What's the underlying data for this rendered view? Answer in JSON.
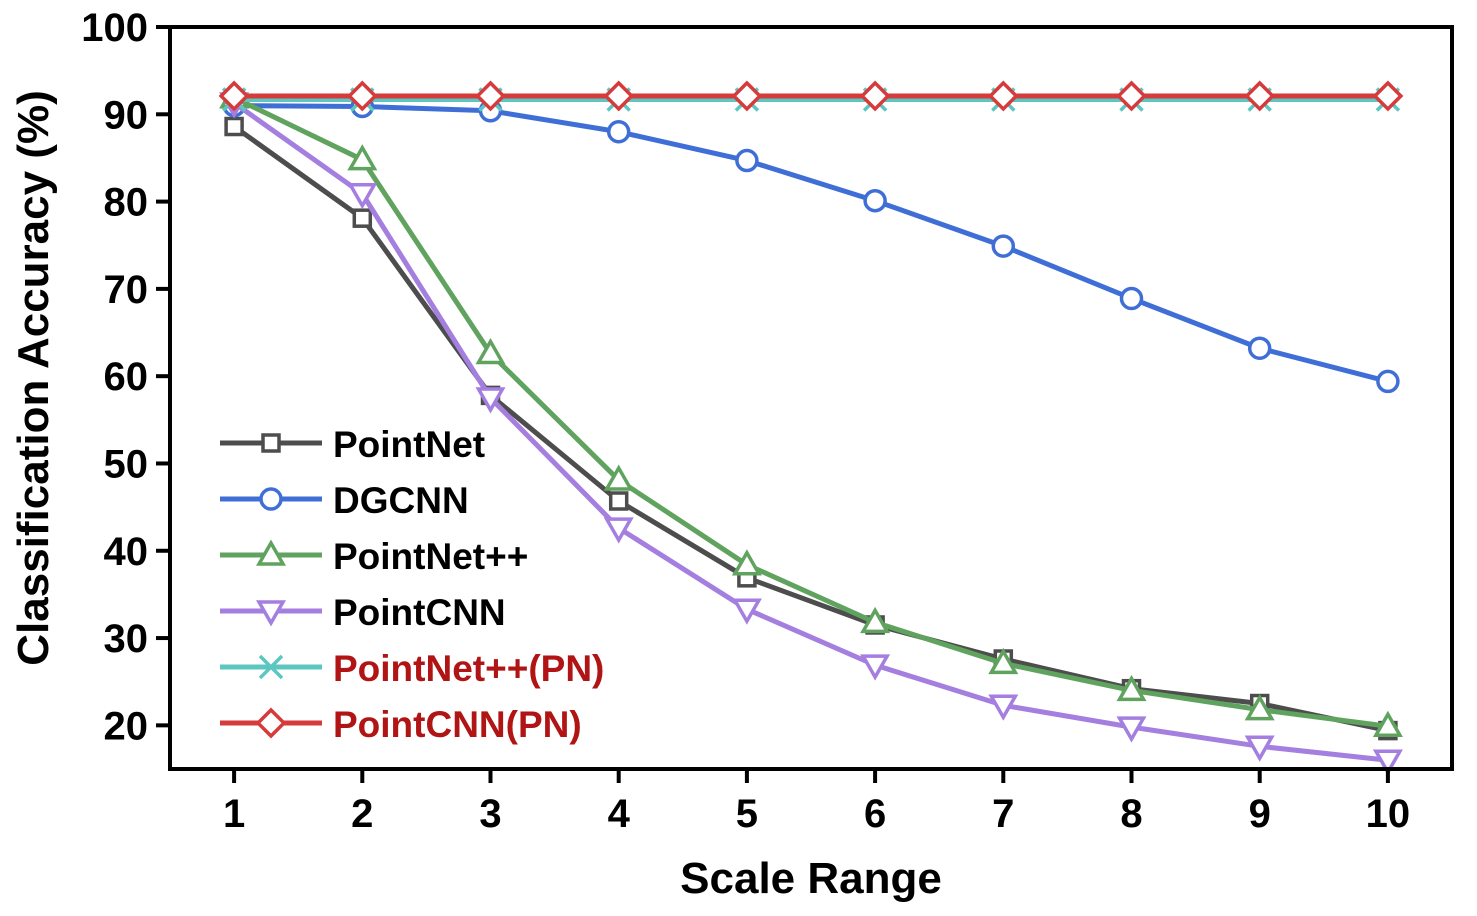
{
  "chart_data": {
    "type": "line",
    "xlabel": "Scale Range",
    "ylabel": "Classification Accuracy (%)",
    "x": [
      1,
      2,
      3,
      4,
      5,
      6,
      7,
      8,
      9,
      10
    ],
    "xlim": [
      0.5,
      10.5
    ],
    "ylim": [
      15,
      100
    ],
    "yticks": [
      20,
      30,
      40,
      50,
      60,
      70,
      80,
      90,
      100
    ],
    "grid": false,
    "legend_position": "lower-left",
    "series": [
      {
        "name": "PointNet",
        "marker": "square",
        "color": "#4d4d4d",
        "label_color": "#000000",
        "values": [
          88.6,
          78.1,
          57.8,
          45.7,
          36.9,
          31.5,
          27.6,
          24.2,
          22.5,
          19.4
        ]
      },
      {
        "name": "DGCNN",
        "marker": "circle",
        "color": "#3f6fd6",
        "label_color": "#000000",
        "values": [
          91.0,
          90.9,
          90.4,
          88.0,
          84.7,
          80.1,
          74.9,
          68.9,
          63.2,
          59.4
        ]
      },
      {
        "name": "PointNet++",
        "marker": "triangle-up",
        "color": "#5fa35f",
        "label_color": "#000000",
        "values": [
          91.9,
          84.8,
          62.6,
          48.1,
          38.4,
          31.8,
          27.1,
          24.0,
          21.8,
          19.9
        ]
      },
      {
        "name": "PointCNN",
        "marker": "triangle-down",
        "color": "#a47fdf",
        "label_color": "#000000",
        "values": [
          91.3,
          80.9,
          57.5,
          42.6,
          33.3,
          26.9,
          22.3,
          19.8,
          17.6,
          16.0
        ]
      },
      {
        "name": "PointNet++(PN)",
        "marker": "x",
        "color": "#5cc6c0",
        "label_color": "#b01414",
        "values": [
          91.7,
          91.7,
          91.7,
          91.7,
          91.7,
          91.7,
          91.7,
          91.7,
          91.7,
          91.7
        ]
      },
      {
        "name": "PointCNN(PN)",
        "marker": "diamond",
        "color": "#d63a3a",
        "label_color": "#b01414",
        "values": [
          92.1,
          92.1,
          92.1,
          92.1,
          92.1,
          92.1,
          92.1,
          92.1,
          92.1,
          92.1
        ]
      }
    ]
  }
}
